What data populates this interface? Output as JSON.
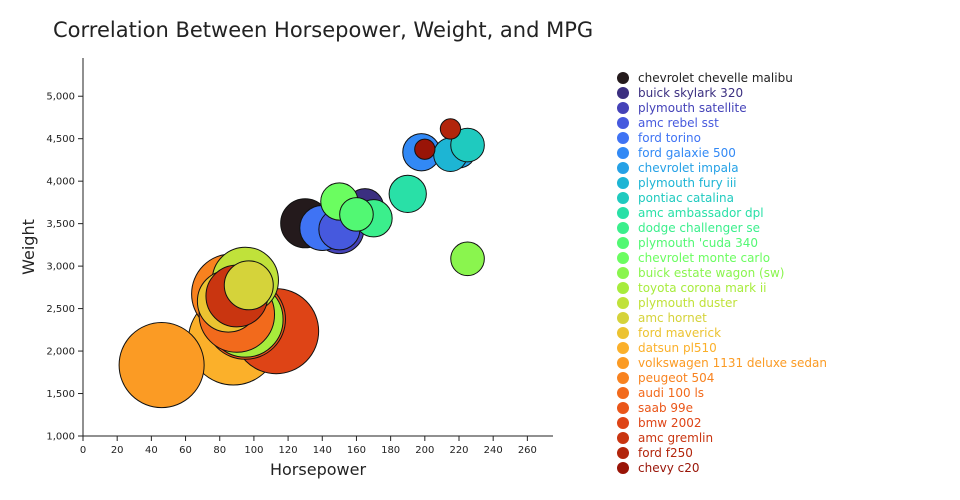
{
  "chart_data": {
    "type": "scatter",
    "title": "Correlation Between Horsepower, Weight, and MPG",
    "xlabel": "Horsepower",
    "ylabel": "Weight",
    "xlim": [
      0,
      275
    ],
    "ylim": [
      1000,
      5450
    ],
    "xticks": [
      0,
      20,
      40,
      60,
      80,
      100,
      120,
      140,
      160,
      180,
      200,
      220,
      240,
      260
    ],
    "xtick_labels": [
      "0",
      "20",
      "40",
      "60",
      "80",
      "100",
      "120",
      "140",
      "160",
      "180",
      "200",
      "220",
      "240",
      "260"
    ],
    "yticks": [
      1000,
      1500,
      2000,
      2500,
      3000,
      3500,
      4000,
      4500,
      5000
    ],
    "ytick_labels": [
      "1,000",
      "1,500",
      "2,000",
      "2,500",
      "3,000",
      "3,500",
      "4,000",
      "4,500",
      "5,000"
    ],
    "size_encoding": "mpg",
    "legend_position": "right",
    "series": [
      {
        "name": "chevrolet chevelle malibu",
        "color": "#241a1c",
        "x": 130,
        "y": 3504,
        "mpg": 18
      },
      {
        "name": "buick skylark 320",
        "color": "#3b2f80",
        "x": 165,
        "y": 3693,
        "mpg": 15
      },
      {
        "name": "plymouth satellite",
        "color": "#4442b8",
        "x": 150,
        "y": 3436,
        "mpg": 18
      },
      {
        "name": "amc rebel sst",
        "color": "#4659de",
        "x": 150,
        "y": 3433,
        "mpg": 16
      },
      {
        "name": "ford torino",
        "color": "#3f73f4",
        "x": 140,
        "y": 3449,
        "mpg": 17
      },
      {
        "name": "ford galaxie 500",
        "color": "#3289f5",
        "x": 198,
        "y": 4341,
        "mpg": 15
      },
      {
        "name": "chevrolet impala",
        "color": "#25a1e6",
        "x": 220,
        "y": 4354,
        "mpg": 14
      },
      {
        "name": "plymouth fury iii",
        "color": "#1db5d4",
        "x": 215,
        "y": 4312,
        "mpg": 14
      },
      {
        "name": "pontiac catalina",
        "color": "#1fcabf",
        "x": 225,
        "y": 4425,
        "mpg": 14
      },
      {
        "name": "amc ambassador dpl",
        "color": "#29e0a7",
        "x": 190,
        "y": 3850,
        "mpg": 15
      },
      {
        "name": "dodge challenger se",
        "color": "#3bef8c",
        "x": 170,
        "y": 3563,
        "mpg": 15
      },
      {
        "name": "plymouth 'cuda 340",
        "color": "#52f873",
        "x": 160,
        "y": 3609,
        "mpg": 14
      },
      {
        "name": "chevrolet monte carlo",
        "color": "#6bfd60",
        "x": 150,
        "y": 3761,
        "mpg": 15
      },
      {
        "name": "buick estate wagon (sw)",
        "color": "#8af54e",
        "x": 225,
        "y": 3086,
        "mpg": 14
      },
      {
        "name": "toyota corona mark ii",
        "color": "#a7ec3c",
        "x": 95,
        "y": 2372,
        "mpg": 24
      },
      {
        "name": "plymouth duster",
        "color": "#c0e23a",
        "x": 95,
        "y": 2833,
        "mpg": 22
      },
      {
        "name": "amc hornet",
        "color": "#d5d33a",
        "x": 97,
        "y": 2774,
        "mpg": 18
      },
      {
        "name": "ford maverick",
        "color": "#ecc331",
        "x": 85,
        "y": 2587,
        "mpg": 21
      },
      {
        "name": "datsun pl510",
        "color": "#fbb02a",
        "x": 88,
        "y": 2130,
        "mpg": 27
      },
      {
        "name": "volkswagen 1131 deluxe sedan",
        "color": "#fb9b24",
        "x": 46,
        "y": 1835,
        "mpg": 26
      },
      {
        "name": "peugeot 504",
        "color": "#f8821f",
        "x": 87,
        "y": 2672,
        "mpg": 25
      },
      {
        "name": "audi 100 ls",
        "color": "#f26a1c",
        "x": 90,
        "y": 2430,
        "mpg": 24
      },
      {
        "name": "saab 99e",
        "color": "#ea5619",
        "x": 95,
        "y": 2375,
        "mpg": 25
      },
      {
        "name": "bmw 2002",
        "color": "#de4416",
        "x": 113,
        "y": 2234,
        "mpg": 26
      },
      {
        "name": "amc gremlin",
        "color": "#c93510",
        "x": 90,
        "y": 2648,
        "mpg": 21
      },
      {
        "name": "ford f250",
        "color": "#b2250b",
        "x": 215,
        "y": 4615,
        "mpg": 10
      },
      {
        "name": "chevy c20",
        "color": "#991407",
        "x": 200,
        "y": 4376,
        "mpg": 10
      }
    ]
  }
}
